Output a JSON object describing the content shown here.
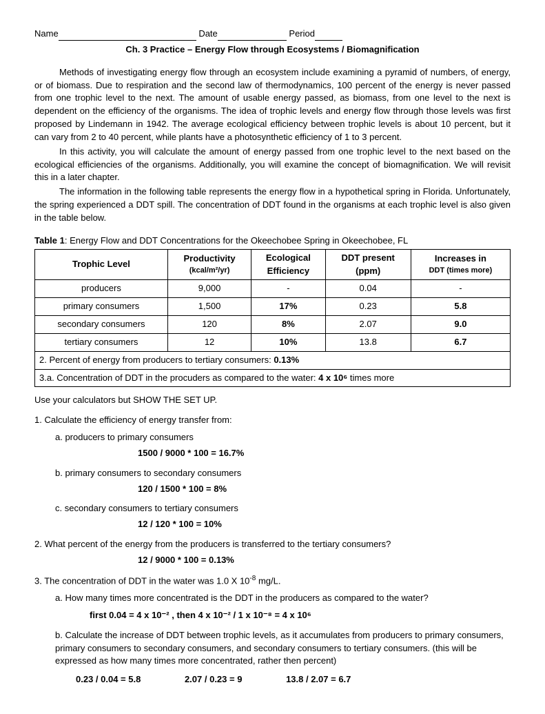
{
  "header": {
    "name_label": "Name",
    "date_label": "Date",
    "period_label": "Period"
  },
  "title": "Ch. 3 Practice – Energy Flow through Ecosystems / Biomagnification",
  "paragraphs": {
    "p1": "Methods of investigating energy flow through an ecosystem include examining a pyramid of numbers, of energy, or of biomass. Due to respiration and the second law of thermodynamics, 100 percent of the energy is never passed from one trophic level to the next. The amount of usable energy passed, as biomass, from one level to the next is dependent on the efficiency of the organisms. The idea of trophic levels and energy flow through those levels was first proposed by Lindemann in 1942. The average ecological efficiency between trophic levels is about 10 percent, but it can vary from 2 to 40 percent, while plants have a photosynthetic efficiency of 1 to 3 percent.",
    "p2": "In this activity, you will calculate the amount of energy passed from one trophic level to the next based on the ecological efficiencies of the organisms. Additionally, you will examine the concept of biomagnification. We will revisit this in a later chapter.",
    "p3": "The information in the following table represents the energy flow in a hypothetical spring in Florida. Unfortunately, the spring experienced a DDT spill. The concentration of DDT found in the organisms at each trophic level is also given in the table below."
  },
  "table": {
    "caption_prefix": "Table 1",
    "caption_text": ": Energy Flow and DDT Concentrations for the Okeechobee Spring in Okeechobee, FL",
    "headers": {
      "c1": "Trophic Level",
      "c2a": "Productivity",
      "c2b": "(kcal/m²/yr)",
      "c3a": "Ecological",
      "c3b": "Efficiency",
      "c4a": "DDT present",
      "c4b": "(ppm)",
      "c5a": "Increases in",
      "c5b": "DDT (times more)"
    },
    "rows": [
      {
        "level": "producers",
        "prod": "9,000",
        "eff": "-",
        "ddt": "0.04",
        "inc": "-",
        "eff_bold": false,
        "inc_bold": false
      },
      {
        "level": "primary consumers",
        "prod": "1,500",
        "eff": "17%",
        "ddt": "0.23",
        "inc": "5.8",
        "eff_bold": true,
        "inc_bold": true
      },
      {
        "level": "secondary consumers",
        "prod": "120",
        "eff": "8%",
        "ddt": "2.07",
        "inc": "9.0",
        "eff_bold": true,
        "inc_bold": true
      },
      {
        "level": "tertiary consumers",
        "prod": "12",
        "eff": "10%",
        "ddt": "13.8",
        "inc": "6.7",
        "eff_bold": true,
        "inc_bold": true
      }
    ],
    "note1_text": "2. Percent of energy from producers to tertiary consumers: ",
    "note1_val": "0.13%",
    "note2_text": "3.a. Concentration of DDT in the procuders as compared to the water: ",
    "note2_val": "4 x 10⁶",
    "note2_suffix": " times more"
  },
  "instructions": "Use your calculators but SHOW THE SET UP.",
  "q1": {
    "text": "1. Calculate the efficiency of energy transfer from:",
    "a_label": "a.   producers to primary consumers",
    "a_ans": "1500 / 9000 * 100 = 16.7%",
    "b_label": "b.   primary consumers to secondary consumers",
    "b_ans": "120 / 1500 * 100 = 8%",
    "c_label": "c.   secondary consumers to tertiary consumers",
    "c_ans": "12 / 120 * 100 = 10%"
  },
  "q2": {
    "text": "2. What percent of the energy from the producers is transferred to the tertiary consumers?",
    "ans": "12 / 9000 * 100 = 0.13%"
  },
  "q3": {
    "text_prefix": "3. The concentration of DDT in the water was 1.0 X 10",
    "text_exp": "-8",
    "text_suffix": " mg/L.",
    "a_label": "a.   How many times more concentrated is the DDT in the producers as compared to the water?",
    "a_ans": "first 0.04 = 4 x 10⁻² ,    then  4 x 10⁻² / 1 x 10⁻⁸ = 4 x 10⁶",
    "b_label": "b.   Calculate the increase of DDT between trophic levels, as it accumulates from producers to primary consumers, primary consumers to secondary consumers, and secondary consumers to tertiary consumers. (this will be expressed as how many times more concentrated, rather then percent)",
    "b_ans1": "0.23 / 0.04 = 5.8",
    "b_ans2": "2.07 / 0.23 = 9",
    "b_ans3": "13.8 / 2.07 = 6.7"
  }
}
